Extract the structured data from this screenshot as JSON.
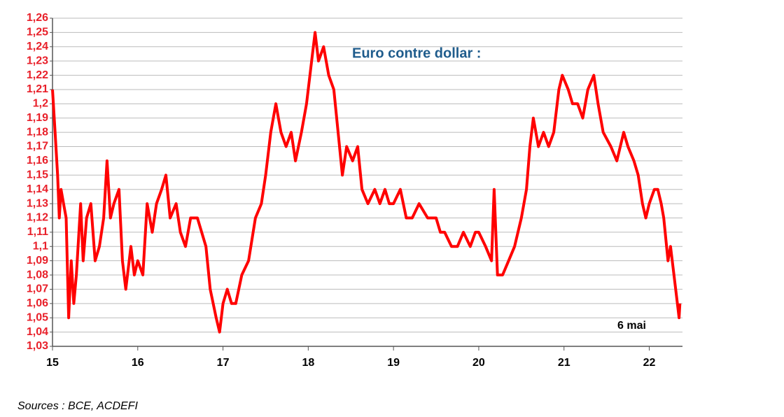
{
  "chart_data": {
    "type": "line",
    "title": "Euro contre dollar :",
    "annotation": "6 mai",
    "source": "Sources : BCE, ACDEFI",
    "color": "#ff0000",
    "grid": true,
    "xlim": [
      15,
      22.39
    ],
    "xticks": [
      15,
      16,
      17,
      18,
      19,
      20,
      21,
      22
    ],
    "ylim": [
      1.03,
      1.26
    ],
    "yticks": [
      {
        "value": 1.03,
        "label": "1,03"
      },
      {
        "value": 1.04,
        "label": "1,04"
      },
      {
        "value": 1.05,
        "label": "1,05"
      },
      {
        "value": 1.06,
        "label": "1,06"
      },
      {
        "value": 1.07,
        "label": "1,07"
      },
      {
        "value": 1.08,
        "label": "1,08"
      },
      {
        "value": 1.09,
        "label": "1,09"
      },
      {
        "value": 1.1,
        "label": "1,1"
      },
      {
        "value": 1.11,
        "label": "1,11"
      },
      {
        "value": 1.12,
        "label": "1,12"
      },
      {
        "value": 1.13,
        "label": "1,13"
      },
      {
        "value": 1.14,
        "label": "1,14"
      },
      {
        "value": 1.15,
        "label": "1,15"
      },
      {
        "value": 1.16,
        "label": "1,16"
      },
      {
        "value": 1.17,
        "label": "1,17"
      },
      {
        "value": 1.18,
        "label": "1,18"
      },
      {
        "value": 1.19,
        "label": "1,19"
      },
      {
        "value": 1.2,
        "label": "1,2"
      },
      {
        "value": 1.21,
        "label": "1,21"
      },
      {
        "value": 1.22,
        "label": "1,22"
      },
      {
        "value": 1.23,
        "label": "1,23"
      },
      {
        "value": 1.24,
        "label": "1,24"
      },
      {
        "value": 1.25,
        "label": "1,25"
      },
      {
        "value": 1.26,
        "label": "1,26"
      }
    ],
    "x": [
      15.0,
      15.03,
      15.06,
      15.08,
      15.1,
      15.13,
      15.16,
      15.19,
      15.22,
      15.25,
      15.28,
      15.33,
      15.36,
      15.4,
      15.45,
      15.5,
      15.55,
      15.6,
      15.64,
      15.68,
      15.72,
      15.78,
      15.82,
      15.86,
      15.92,
      15.96,
      16.0,
      16.06,
      16.11,
      16.17,
      16.22,
      16.28,
      16.33,
      16.38,
      16.45,
      16.5,
      16.56,
      16.62,
      16.7,
      16.8,
      16.85,
      16.92,
      16.96,
      17.0,
      17.05,
      17.1,
      17.15,
      17.22,
      17.3,
      17.38,
      17.45,
      17.5,
      17.56,
      17.62,
      17.68,
      17.74,
      17.8,
      17.85,
      17.92,
      17.98,
      18.04,
      18.08,
      18.12,
      18.18,
      18.24,
      18.3,
      18.35,
      18.4,
      18.45,
      18.52,
      18.58,
      18.63,
      18.7,
      18.78,
      18.84,
      18.9,
      18.95,
      19.0,
      19.08,
      19.15,
      19.22,
      19.3,
      19.4,
      19.5,
      19.55,
      19.6,
      19.68,
      19.75,
      19.82,
      19.9,
      19.96,
      20.0,
      20.08,
      20.15,
      20.18,
      20.22,
      20.28,
      20.35,
      20.42,
      20.5,
      20.56,
      20.6,
      20.64,
      20.7,
      20.76,
      20.82,
      20.88,
      20.94,
      20.98,
      21.05,
      21.1,
      21.16,
      21.22,
      21.28,
      21.35,
      21.4,
      21.46,
      21.55,
      21.62,
      21.7,
      21.75,
      21.82,
      21.87,
      21.92,
      21.96,
      22.0,
      22.06,
      22.1,
      22.14,
      22.17,
      22.22,
      22.25,
      22.29,
      22.33,
      22.35,
      22.36
    ],
    "values": [
      1.21,
      1.18,
      1.15,
      1.12,
      1.14,
      1.13,
      1.12,
      1.05,
      1.09,
      1.06,
      1.08,
      1.13,
      1.09,
      1.12,
      1.13,
      1.09,
      1.1,
      1.12,
      1.16,
      1.12,
      1.13,
      1.14,
      1.09,
      1.07,
      1.1,
      1.08,
      1.09,
      1.08,
      1.13,
      1.11,
      1.13,
      1.14,
      1.15,
      1.12,
      1.13,
      1.11,
      1.1,
      1.12,
      1.12,
      1.1,
      1.07,
      1.05,
      1.04,
      1.06,
      1.07,
      1.06,
      1.06,
      1.08,
      1.09,
      1.12,
      1.13,
      1.15,
      1.18,
      1.2,
      1.18,
      1.17,
      1.18,
      1.16,
      1.18,
      1.2,
      1.23,
      1.25,
      1.23,
      1.24,
      1.22,
      1.21,
      1.18,
      1.15,
      1.17,
      1.16,
      1.17,
      1.14,
      1.13,
      1.14,
      1.13,
      1.14,
      1.13,
      1.13,
      1.14,
      1.12,
      1.12,
      1.13,
      1.12,
      1.12,
      1.11,
      1.11,
      1.1,
      1.1,
      1.11,
      1.1,
      1.11,
      1.11,
      1.1,
      1.09,
      1.14,
      1.08,
      1.08,
      1.09,
      1.1,
      1.12,
      1.14,
      1.17,
      1.19,
      1.17,
      1.18,
      1.17,
      1.18,
      1.21,
      1.22,
      1.21,
      1.2,
      1.2,
      1.19,
      1.21,
      1.22,
      1.2,
      1.18,
      1.17,
      1.16,
      1.18,
      1.17,
      1.16,
      1.15,
      1.13,
      1.12,
      1.13,
      1.14,
      1.14,
      1.13,
      1.12,
      1.09,
      1.1,
      1.08,
      1.06,
      1.05,
      1.06
    ]
  }
}
